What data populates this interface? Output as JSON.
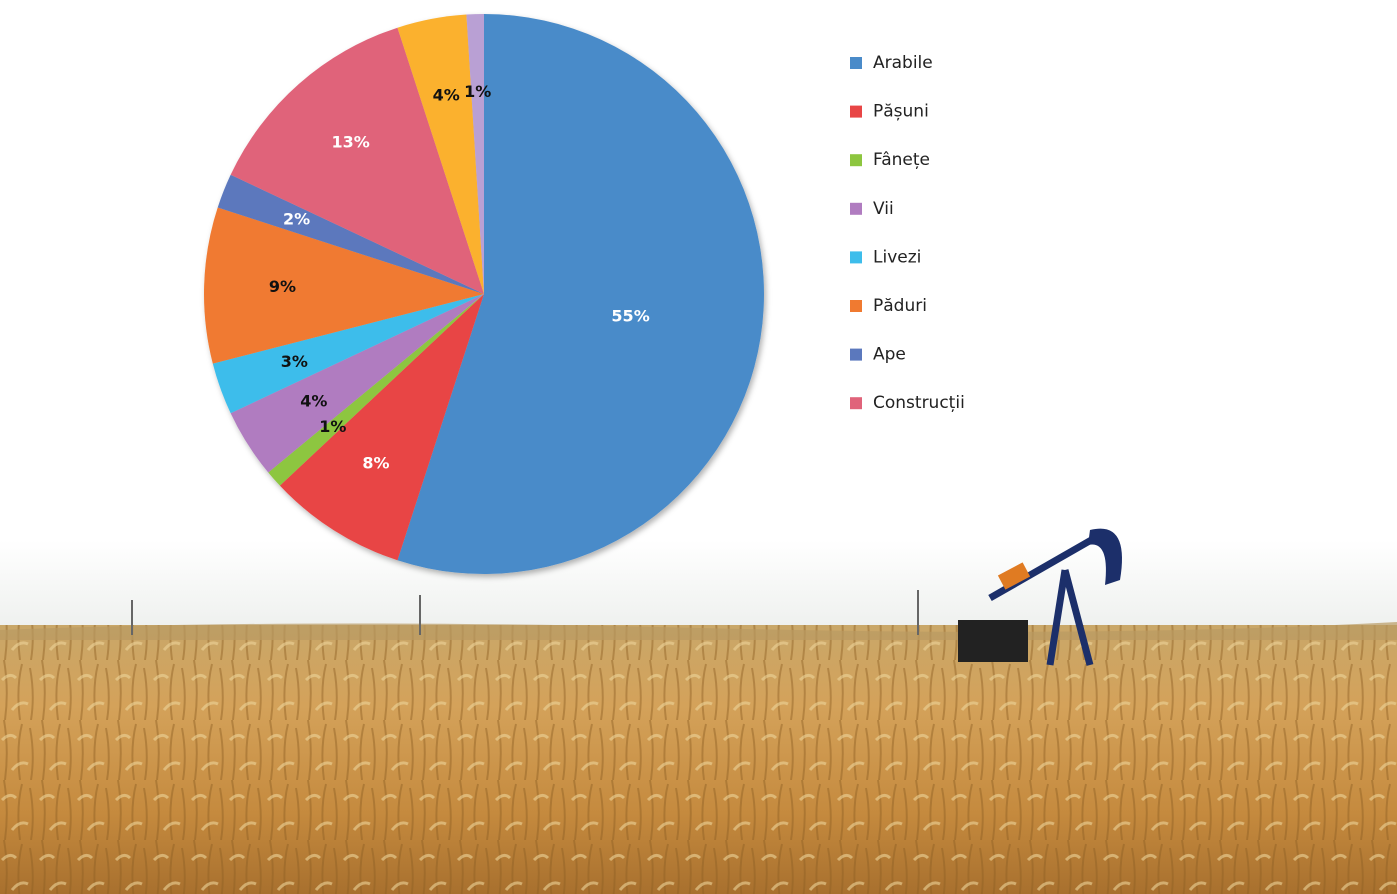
{
  "chart_data": {
    "type": "pie",
    "categories": [
      "Arabile",
      "Pășuni",
      "Fânețe",
      "Vii",
      "Livezi",
      "Păduri",
      "Ape",
      "Construcții",
      null,
      null
    ],
    "values": [
      55,
      8,
      1,
      4,
      3,
      9,
      2,
      13,
      4,
      1
    ],
    "value_labels": [
      "55%",
      "8%",
      "1%",
      "4%",
      "3%",
      "9%",
      "2%",
      "13%",
      "4%",
      "1%"
    ],
    "colors": [
      "#4a8bc9",
      "#e84545",
      "#8dc63f",
      "#b07cc0",
      "#3dbdeb",
      "#f07a30",
      "#5b78bd",
      "#e0637a",
      "#fbb12f",
      "#b9a0d4"
    ],
    "legend": "right"
  }
}
